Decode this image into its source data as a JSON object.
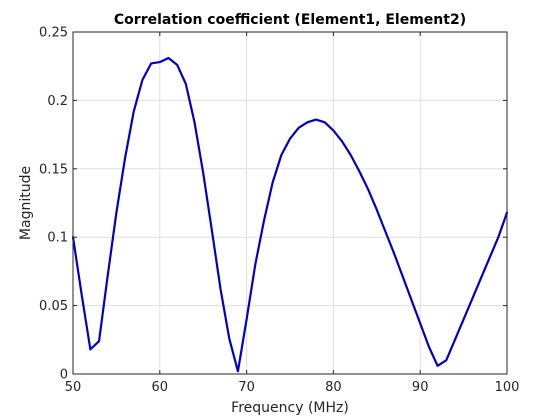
{
  "chart_data": {
    "type": "line",
    "title": "Correlation coefficient (Element1, Element2)",
    "xlabel": "Frequency (MHz)",
    "ylabel": "Magnitude",
    "xlim": [
      50,
      100
    ],
    "ylim": [
      0,
      0.25
    ],
    "xticks": [
      50,
      60,
      70,
      80,
      90,
      100
    ],
    "yticks": [
      0,
      0.05,
      0.1,
      0.15,
      0.2,
      0.25
    ],
    "xtick_labels": [
      "50",
      "60",
      "70",
      "80",
      "90",
      "100"
    ],
    "ytick_labels": [
      "0",
      "0.05",
      "0.1",
      "0.15",
      "0.2",
      "0.25"
    ],
    "grid": true,
    "series": [
      {
        "color": "#0000cc",
        "x": [
          50,
          51,
          52,
          53,
          54,
          55,
          56,
          57,
          58,
          59,
          60,
          61,
          62,
          63,
          64,
          65,
          66,
          67,
          68,
          69,
          70,
          71,
          72,
          73,
          74,
          75,
          76,
          77,
          78,
          79,
          80,
          81,
          82,
          83,
          84,
          85,
          86,
          87,
          88,
          89,
          90,
          91,
          92,
          93,
          94,
          95,
          96,
          97,
          98,
          99,
          100
        ],
        "y": [
          0.1,
          0.058,
          0.018,
          0.024,
          0.072,
          0.118,
          0.158,
          0.192,
          0.215,
          0.227,
          0.228,
          0.231,
          0.226,
          0.212,
          0.184,
          0.147,
          0.105,
          0.062,
          0.026,
          0.002,
          0.04,
          0.08,
          0.112,
          0.14,
          0.16,
          0.172,
          0.18,
          0.184,
          0.186,
          0.184,
          0.178,
          0.17,
          0.16,
          0.148,
          0.135,
          0.12,
          0.104,
          0.088,
          0.071,
          0.054,
          0.037,
          0.02,
          0.006,
          0.01,
          0.025,
          0.04,
          0.055,
          0.07,
          0.085,
          0.1,
          0.118
        ]
      }
    ]
  }
}
